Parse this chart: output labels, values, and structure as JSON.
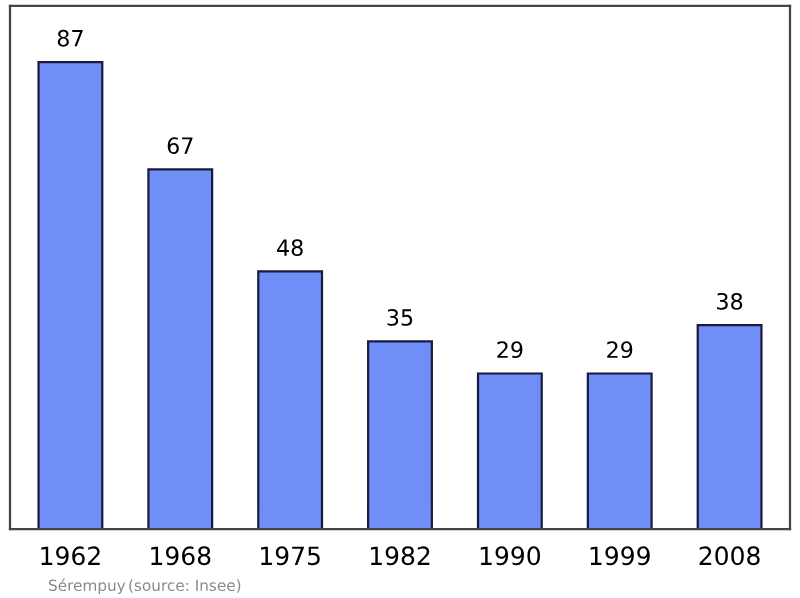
{
  "chart_data": {
    "type": "bar",
    "categories": [
      "1962",
      "1968",
      "1975",
      "1982",
      "1990",
      "1999",
      "2008"
    ],
    "values": [
      87,
      67,
      48,
      35,
      29,
      29,
      38
    ],
    "color": "#6f8ff7",
    "data_labels": true,
    "annotations": [
      "Sérempuy",
      "(source: Insee)"
    ]
  }
}
